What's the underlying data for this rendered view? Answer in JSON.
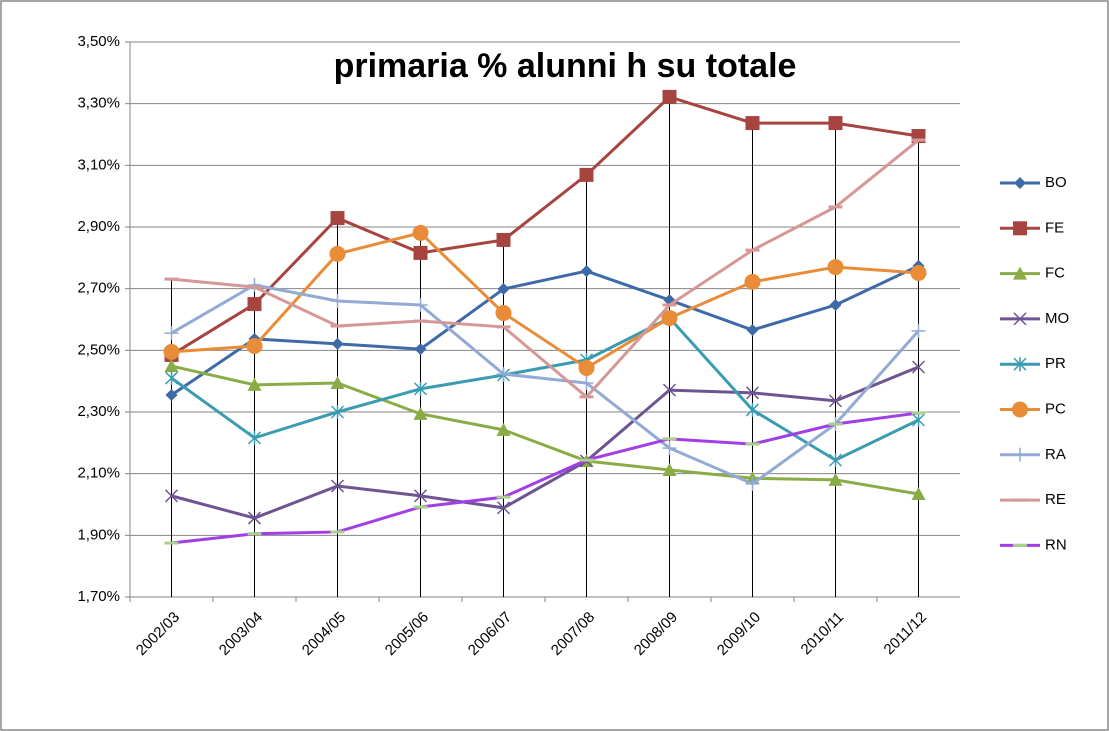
{
  "chart_data": {
    "type": "line",
    "title": "primaria % alunni h su totale",
    "categories": [
      "2002/03",
      "2003/04",
      "2004/05",
      "2005/06",
      "2006/07",
      "2007/08",
      "2008/09",
      "2009/10",
      "2010/11",
      "2011/12"
    ],
    "ylim": [
      1.7,
      3.5
    ],
    "yticks": [
      {
        "value": 1.7,
        "label": "1,70%"
      },
      {
        "value": 1.9,
        "label": "1,90%"
      },
      {
        "value": 2.1,
        "label": "2,10%"
      },
      {
        "value": 2.3,
        "label": "2,30%"
      },
      {
        "value": 2.5,
        "label": "2,50%"
      },
      {
        "value": 2.7,
        "label": "2,70%"
      },
      {
        "value": 2.9,
        "label": "2,90%"
      },
      {
        "value": 3.1,
        "label": "3,10%"
      },
      {
        "value": 3.3,
        "label": "3,30%"
      },
      {
        "value": 3.5,
        "label": "3,50%"
      }
    ],
    "grid": true,
    "legend": "right",
    "series": [
      {
        "name": "BO",
        "color": "#3e6aa8",
        "marker": "diamond",
        "values": [
          2.355,
          2.537,
          2.521,
          2.504,
          2.699,
          2.757,
          2.663,
          2.566,
          2.647,
          2.774
        ]
      },
      {
        "name": "FE",
        "color": "#a84440",
        "marker": "square",
        "values": [
          2.485,
          2.65,
          2.929,
          2.816,
          2.858,
          3.069,
          3.322,
          3.237,
          3.237,
          3.195
        ]
      },
      {
        "name": "FC",
        "color": "#8aac46",
        "marker": "triangle",
        "values": [
          2.449,
          2.388,
          2.394,
          2.294,
          2.242,
          2.141,
          2.112,
          2.085,
          2.08,
          2.034
        ]
      },
      {
        "name": "MO",
        "color": "#6e5490",
        "marker": "x",
        "values": [
          2.028,
          1.956,
          2.06,
          2.028,
          1.989,
          2.141,
          2.371,
          2.362,
          2.336,
          2.446
        ]
      },
      {
        "name": "PR",
        "color": "#3b9cb1",
        "marker": "star",
        "values": [
          2.41,
          2.216,
          2.3,
          2.375,
          2.42,
          2.469,
          2.605,
          2.307,
          2.144,
          2.274
        ]
      },
      {
        "name": "PC",
        "color": "#e98c38",
        "marker": "circle",
        "values": [
          2.495,
          2.514,
          2.813,
          2.881,
          2.621,
          2.443,
          2.605,
          2.722,
          2.77,
          2.751
        ]
      },
      {
        "name": "RA",
        "color": "#92aad4",
        "marker": "plus",
        "values": [
          2.556,
          2.712,
          2.66,
          2.647,
          2.423,
          2.394,
          2.183,
          2.067,
          2.261,
          2.563
        ]
      },
      {
        "name": "RE",
        "color": "#d69896",
        "marker": "dash",
        "values": [
          2.731,
          2.705,
          2.579,
          2.595,
          2.576,
          2.349,
          2.647,
          2.825,
          2.965,
          3.182
        ]
      },
      {
        "name": "RN",
        "color": "#a23ee6",
        "marker": "dash-green",
        "values": [
          1.875,
          1.905,
          1.911,
          1.992,
          2.024,
          2.144,
          2.213,
          2.196,
          2.261,
          2.297
        ]
      }
    ]
  }
}
